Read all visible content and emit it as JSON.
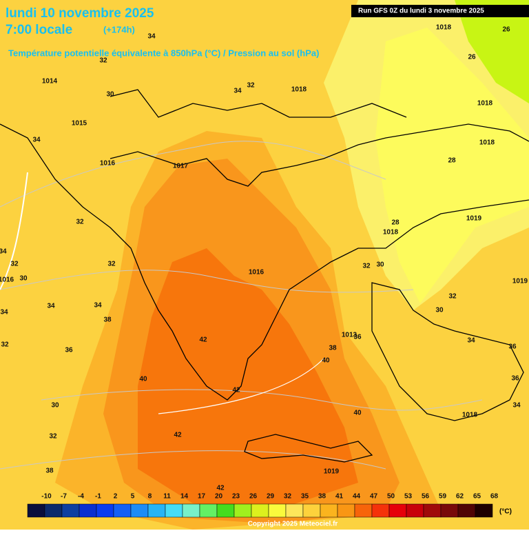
{
  "header": {
    "date": "lundi 10 novembre 2025",
    "time": "7:00 locale",
    "lead": "(+174h)",
    "subtitle": "Température potentielle équivalente à 850hPa (°C) / Pression au sol (hPa)",
    "run": "Run GFS 0Z du lundi 3 novembre 2025"
  },
  "map": {
    "labels": [
      34,
      32,
      1014,
      30,
      1015,
      34,
      1016,
      1017,
      34,
      32,
      1018,
      1018,
      26,
      26,
      1018,
      1018,
      28,
      1019,
      28,
      1018,
      32,
      32,
      1016,
      32,
      30,
      34,
      32,
      1016,
      30,
      34,
      34,
      38,
      34,
      32,
      36,
      42,
      1013,
      36,
      38,
      40,
      40,
      42,
      30,
      32,
      40,
      1018,
      30,
      32,
      1019,
      34,
      36,
      36,
      34,
      42,
      38,
      1019,
      42
    ]
  },
  "legend": {
    "ticks": [
      -10,
      -7,
      -4,
      -1,
      2,
      5,
      8,
      11,
      14,
      17,
      20,
      23,
      26,
      29,
      32,
      35,
      38,
      41,
      44,
      47,
      50,
      53,
      56,
      59,
      62,
      65,
      68
    ],
    "colors": [
      "#0a0f3c",
      "#0b2a6b",
      "#0d3fa0",
      "#0a2fd0",
      "#0a3cf0",
      "#1460f5",
      "#1e8cf5",
      "#28b4f5",
      "#46dcf5",
      "#78f0c8",
      "#64f064",
      "#46dc1e",
      "#a0f01e",
      "#dcf01e",
      "#fafa3c",
      "#fde65a",
      "#fdd23c",
      "#fbb41e",
      "#f99614",
      "#f7640a",
      "#f5320a",
      "#e6000a",
      "#c8000a",
      "#a00a0a",
      "#780a0a",
      "#500505",
      "#1e0000"
    ],
    "unit": "(°C)"
  },
  "footer": {
    "copyright": "Copyright 2025 Meteociel.fr"
  }
}
